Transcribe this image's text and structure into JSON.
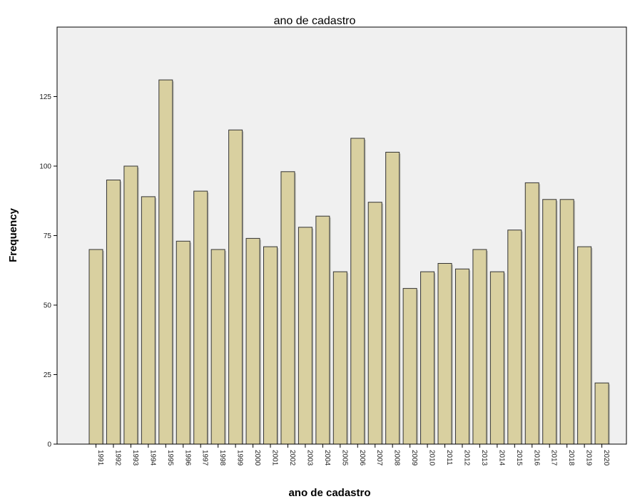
{
  "chart_data": {
    "type": "bar",
    "title": "ano de cadastro",
    "xlabel": "ano de cadastro",
    "ylabel": "Frequency",
    "categories": [
      "1991",
      "1992",
      "1993",
      "1994",
      "1995",
      "1996",
      "1997",
      "1998",
      "1999",
      "2000",
      "2001",
      "2002",
      "2003",
      "2004",
      "2005",
      "2006",
      "2007",
      "2008",
      "2009",
      "2010",
      "2011",
      "2012",
      "2013",
      "2014",
      "2015",
      "2016",
      "2017",
      "2018",
      "2019",
      "2020"
    ],
    "values": [
      70,
      95,
      100,
      89,
      131,
      73,
      91,
      70,
      113,
      74,
      71,
      98,
      78,
      82,
      62,
      110,
      87,
      105,
      56,
      62,
      65,
      63,
      70,
      62,
      77,
      94,
      88,
      88,
      71,
      22
    ],
    "ylim": [
      0,
      150
    ],
    "yticks": [
      0,
      25,
      50,
      75,
      100,
      125
    ],
    "grid": false,
    "colors": {
      "bar": "#d9d0a0",
      "bar_stroke": "#333333",
      "plot_bg": "#f0f0f0",
      "axis": "#000000"
    }
  }
}
